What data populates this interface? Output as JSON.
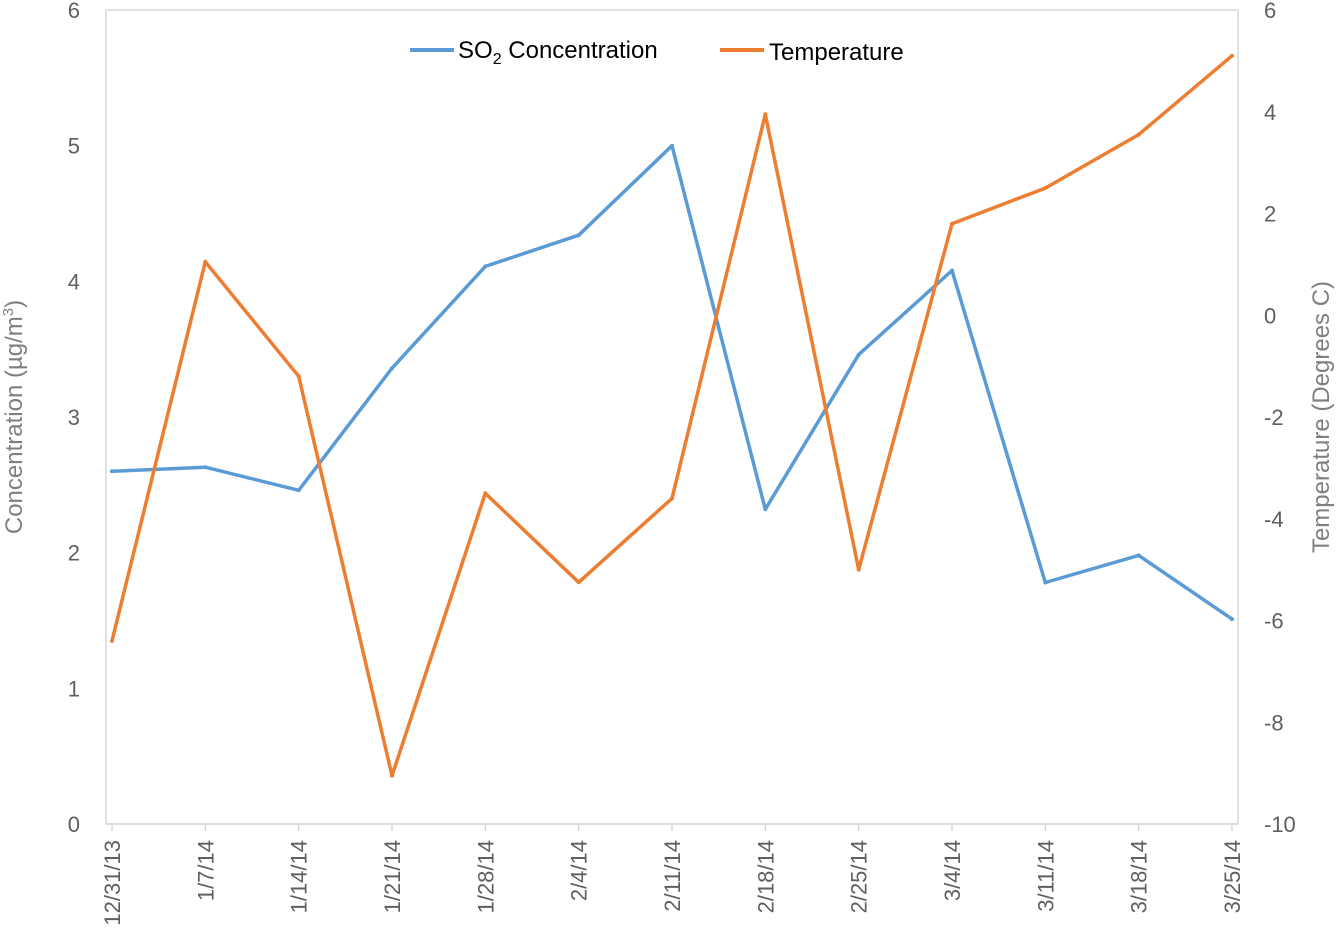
{
  "chart_data": {
    "type": "line",
    "title": "",
    "categories": [
      "12/31/13",
      "1/7/14",
      "1/14/14",
      "1/21/14",
      "1/28/14",
      "2/4/14",
      "2/11/14",
      "2/18/14",
      "2/25/14",
      "3/4/14",
      "3/11/14",
      "3/18/14",
      "3/25/14"
    ],
    "xlabel": "",
    "ylabel": {
      "main": "Concentration (µg/m",
      "sup": "3",
      "end": ")"
    },
    "y2label": "Temperature (Degrees C)",
    "ylim": [
      0,
      6
    ],
    "y2lim": [
      -10,
      6
    ],
    "yticks": [
      "0",
      "1",
      "2",
      "3",
      "4",
      "5",
      "6"
    ],
    "y2ticks": [
      "-10",
      "-8",
      "-6",
      "-4",
      "-2",
      "0",
      "2",
      "4",
      "6"
    ],
    "grid": false,
    "legend_position": "top-center",
    "series": [
      {
        "name": "SO2 Concentration",
        "legend_main": "SO",
        "legend_sub": "2",
        "legend_rest": " Concentration",
        "axis": "left",
        "color": "#5b9bd5",
        "values": [
          2.6,
          2.63,
          2.46,
          3.36,
          4.11,
          4.34,
          5.0,
          2.32,
          3.46,
          4.08,
          1.78,
          1.98,
          1.51
        ]
      },
      {
        "name": "Temperature",
        "axis": "right",
        "color": "#ed7d31",
        "values": [
          -6.4,
          1.05,
          -1.2,
          -9.05,
          -3.5,
          -5.25,
          -3.6,
          3.95,
          -5.0,
          1.8,
          2.5,
          3.55,
          5.1
        ]
      }
    ]
  }
}
